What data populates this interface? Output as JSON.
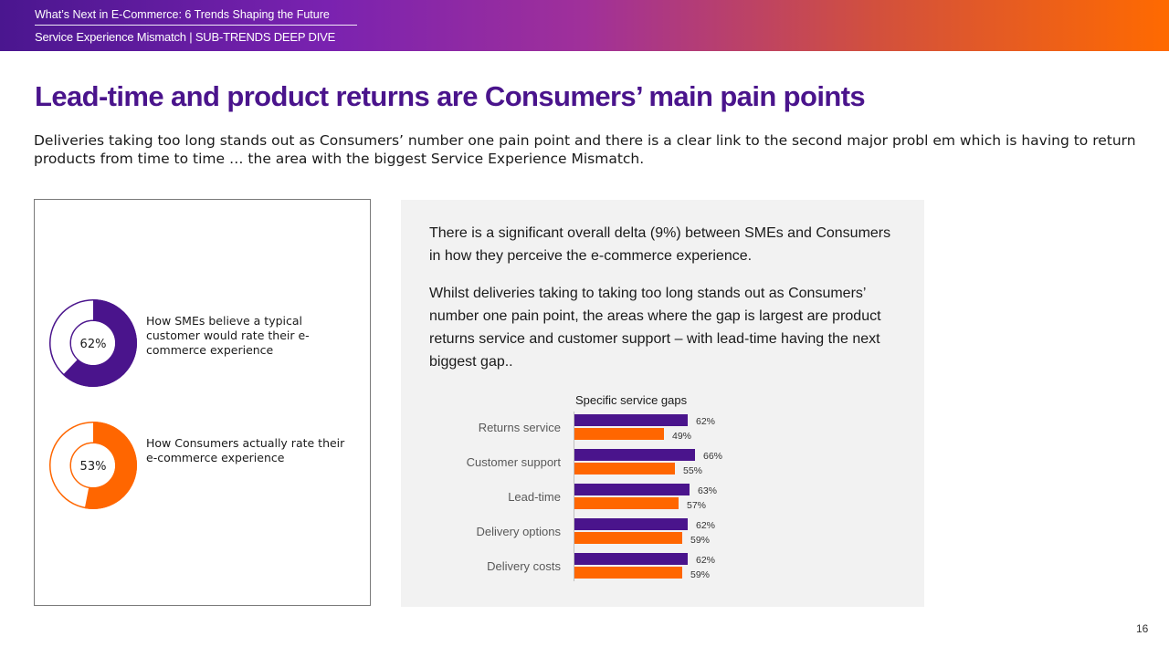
{
  "header": {
    "line1": "What’s Next in E-Commerce: 6 Trends Shaping the Future",
    "line2": "Service Experience Mismatch | SUB-TRENDS DEEP DIVE"
  },
  "title": "Lead-time and product returns are Consumers’ main pain points",
  "subtitle": "Deliveries taking too long stands out as Consumers’ number one pain point and there is a clear link to the second major probl em which is having to return products from time to time … the area with the biggest Service Experience Mismatch.",
  "donuts": [
    {
      "value": 62,
      "label_text": "62%",
      "color": "#4a148c",
      "description": "How SMEs believe a typical customer would rate their e-commerce experience"
    },
    {
      "value": 53,
      "label_text": "53%",
      "color": "#ff6600",
      "description": "How Consumers actually rate their e-commerce experience"
    }
  ],
  "panel": {
    "paragraph1": "There is a significant overall delta (9%) between SMEs and Consumers in how they perceive the  e-commerce experience.",
    "paragraph2": "Whilst deliveries taking to taking too long stands out as Consumers’ number one pain point, the areas where the gap is largest are product returns service and customer support – with lead-time having the next biggest gap.."
  },
  "chart_data": {
    "type": "bar",
    "orientation": "horizontal",
    "title": "Specific service gaps",
    "categories": [
      "Returns service",
      "Customer support",
      "Lead-time",
      "Delivery options",
      "Delivery costs"
    ],
    "series": [
      {
        "name": "SMEs",
        "color": "#4a148c",
        "values": [
          62,
          66,
          63,
          62,
          62
        ],
        "labels": [
          "62%",
          "66%",
          "63%",
          "62%",
          "62%"
        ]
      },
      {
        "name": "Consumers",
        "color": "#ff6600",
        "values": [
          49,
          55,
          57,
          59,
          59
        ],
        "labels": [
          "49%",
          "55%",
          "57%",
          "59%",
          "59%"
        ]
      }
    ],
    "xlim": [
      0,
      100
    ]
  },
  "page_number": "16"
}
